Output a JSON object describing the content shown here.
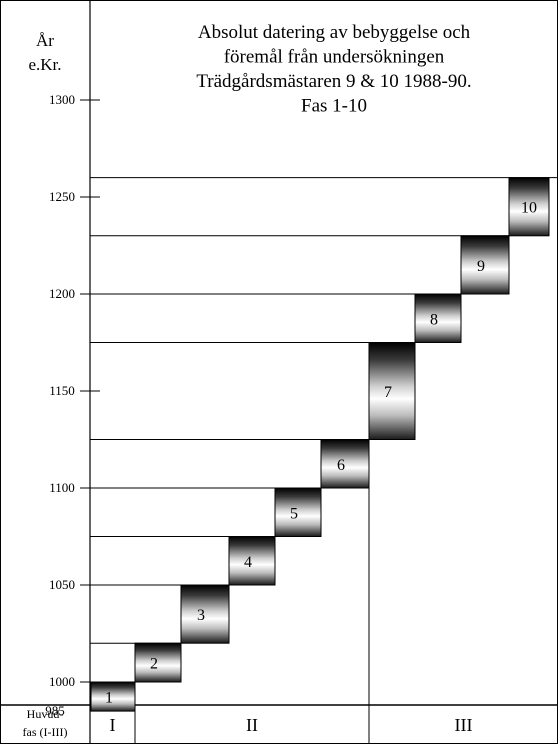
{
  "chart_data": {
    "type": "bar",
    "title_lines": [
      "Absolut datering av bebyggelse och",
      "föremål från undersökningen",
      "Trädgårdsmästaren 9 & 10 1988-90.",
      "Fas 1-10"
    ],
    "ylabel_lines": [
      "År",
      "e.Kr."
    ],
    "y_ticks": [
      1300,
      1250,
      1200,
      1150,
      1100,
      1050,
      1000
    ],
    "y_start_label": "985",
    "ylim": [
      985,
      1300
    ],
    "phases": [
      {
        "label": "1",
        "start": 985,
        "end": 1000
      },
      {
        "label": "2",
        "start": 1000,
        "end": 1020
      },
      {
        "label": "3",
        "start": 1020,
        "end": 1050
      },
      {
        "label": "4",
        "start": 1050,
        "end": 1075
      },
      {
        "label": "5",
        "start": 1075,
        "end": 1100
      },
      {
        "label": "6",
        "start": 1100,
        "end": 1125
      },
      {
        "label": "7",
        "start": 1125,
        "end": 1175
      },
      {
        "label": "8",
        "start": 1175,
        "end": 1200
      },
      {
        "label": "9",
        "start": 1200,
        "end": 1230
      },
      {
        "label": "10",
        "start": 1230,
        "end": 1260
      }
    ],
    "main_phase_header": [
      "Huvud-",
      "fas (I-III)"
    ],
    "main_phases": [
      {
        "label": "I",
        "from_phase": 1,
        "to_phase": 1
      },
      {
        "label": "II",
        "from_phase": 2,
        "to_phase": 6
      },
      {
        "label": "III",
        "from_phase": 7,
        "to_phase": 10
      }
    ]
  }
}
